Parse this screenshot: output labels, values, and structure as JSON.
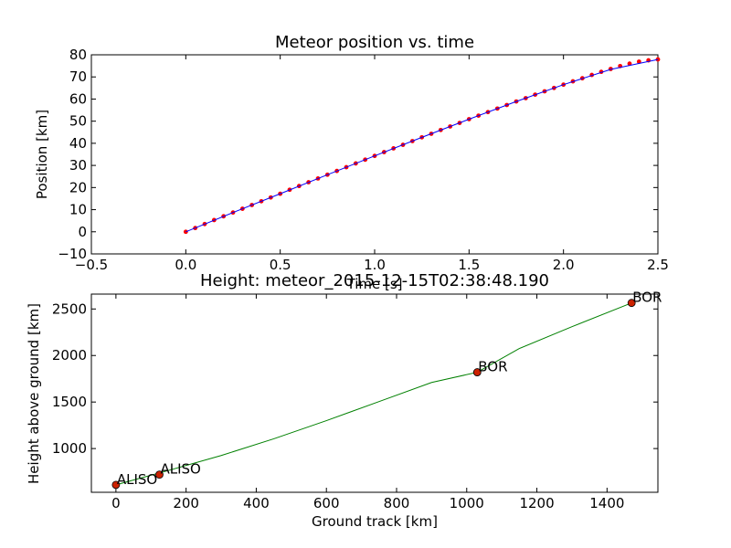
{
  "chart_data": [
    {
      "type": "line",
      "title": "Meteor position vs. time",
      "xlabel": "Time [s]",
      "ylabel": "Position [km]",
      "xlim": [
        -0.5,
        2.5
      ],
      "ylim": [
        -10,
        80
      ],
      "xticks": [
        "−0.5",
        "0.0",
        "0.5",
        "1.0",
        "1.5",
        "2.0",
        "2.5"
      ],
      "yticks": [
        "−10",
        "0",
        "10",
        "20",
        "30",
        "40",
        "50",
        "60",
        "70",
        "80"
      ],
      "xtick_values": [
        -0.5,
        0.0,
        0.5,
        1.0,
        1.5,
        2.0,
        2.5
      ],
      "ytick_values": [
        -10,
        0,
        10,
        20,
        30,
        40,
        50,
        60,
        70,
        80
      ],
      "grid": false,
      "series": [
        {
          "style": "dots",
          "color": "#ff0000",
          "x": [
            0.0,
            0.05,
            0.1,
            0.15,
            0.2,
            0.25,
            0.3,
            0.35,
            0.4,
            0.45,
            0.5,
            0.55,
            0.6,
            0.65,
            0.7,
            0.75,
            0.8,
            0.85,
            0.9,
            0.95,
            1.0,
            1.05,
            1.1,
            1.15,
            1.2,
            1.25,
            1.3,
            1.35,
            1.4,
            1.45,
            1.5,
            1.55,
            1.6,
            1.65,
            1.7,
            1.75,
            1.8,
            1.85,
            1.9,
            1.95,
            2.0,
            2.05,
            2.1,
            2.15,
            2.2,
            2.25,
            2.3,
            2.35,
            2.4,
            2.45,
            2.5
          ],
          "y": [
            0.0,
            1.7,
            3.5,
            5.3,
            7.0,
            8.7,
            10.4,
            12.1,
            13.8,
            15.5,
            17.2,
            19.0,
            20.7,
            22.4,
            24.1,
            25.8,
            27.5,
            29.2,
            30.9,
            32.6,
            34.3,
            36.0,
            37.7,
            39.3,
            41.0,
            42.7,
            44.3,
            46.0,
            47.6,
            49.2,
            50.9,
            52.5,
            54.1,
            55.7,
            57.3,
            58.9,
            60.4,
            62.0,
            63.5,
            65.0,
            66.5,
            68.0,
            69.4,
            70.9,
            72.3,
            73.6,
            74.9,
            76.0,
            76.9,
            77.5,
            77.9
          ]
        },
        {
          "style": "line",
          "color": "#0000ff",
          "x": [
            0.0,
            0.25,
            0.5,
            0.75,
            1.0,
            1.25,
            1.5,
            1.75,
            2.0,
            2.25,
            2.5
          ],
          "y": [
            0.0,
            8.7,
            17.2,
            25.8,
            34.3,
            42.7,
            50.9,
            58.9,
            66.5,
            73.4,
            77.9
          ]
        }
      ]
    },
    {
      "type": "line",
      "title": "Height: meteor_2015-12-15T02:38:48.190",
      "xlabel": "Ground track [km]",
      "ylabel": "Height above ground [km]",
      "xlim": [
        -70,
        1545
      ],
      "ylim": [
        530,
        2660
      ],
      "xticks": [
        "0",
        "200",
        "400",
        "600",
        "800",
        "1000",
        "1200",
        "1400"
      ],
      "yticks": [
        "1000",
        "1500",
        "2000",
        "2500"
      ],
      "xtick_values": [
        0,
        200,
        400,
        600,
        800,
        1000,
        1200,
        1400
      ],
      "ytick_values": [
        1000,
        1500,
        2000,
        2500
      ],
      "grid": false,
      "series": [
        {
          "style": "line",
          "color": "#008000",
          "x": [
            0,
            150,
            300,
            450,
            600,
            750,
            900,
            1030,
            1150,
            1300,
            1470
          ],
          "y": [
            610,
            765,
            925,
            1105,
            1300,
            1505,
            1710,
            1820,
            2075,
            2310,
            2565
          ]
        }
      ],
      "stations": [
        {
          "label": "ALISO",
          "x": 0,
          "y": 610
        },
        {
          "label": "ALISO",
          "x": 124,
          "y": 720
        },
        {
          "label": "BOR",
          "x": 1030,
          "y": 1820
        },
        {
          "label": "BOR",
          "x": 1470,
          "y": 2565
        }
      ]
    }
  ]
}
